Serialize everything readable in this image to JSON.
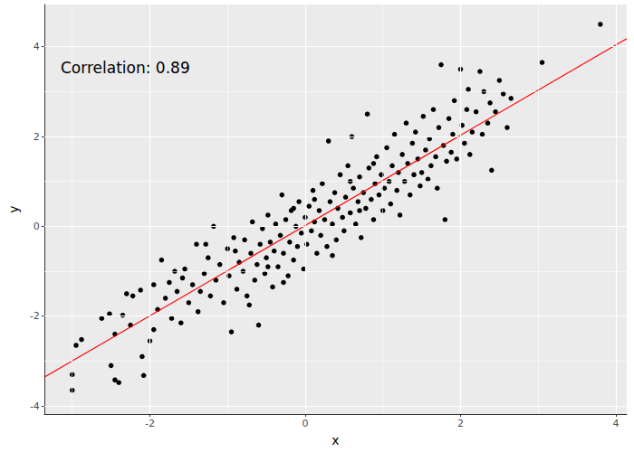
{
  "chart_data": {
    "type": "scatter",
    "x_label": "x",
    "y_label": "y",
    "annotation": "Correlation: 0.89",
    "xlim": [
      -3.36,
      4.14
    ],
    "xticks": [
      -2,
      0,
      2,
      4
    ],
    "ylim": [
      -4.18,
      4.94
    ],
    "yticks": [
      -4,
      -2,
      0,
      2,
      4
    ],
    "grid": true,
    "series": [
      {
        "type": "scatter",
        "color": "#000000",
        "marker": "circle",
        "x": [
          -3.0,
          -3.0,
          -2.95,
          -2.88,
          -2.62,
          -2.52,
          -2.5,
          -2.45,
          -2.4,
          -2.35,
          -2.3,
          -2.22,
          -2.12,
          -2.08,
          -2.1,
          -1.95,
          -1.85,
          -1.72,
          -2.0,
          -1.9,
          -1.8,
          -1.75,
          -1.65,
          -1.6,
          -1.55,
          -1.5,
          -1.45,
          -1.4,
          -1.38,
          -1.3,
          -1.25,
          -1.22,
          -1.18,
          -1.15,
          -1.1,
          -1.05,
          -1.0,
          -0.98,
          -0.95,
          -0.92,
          -0.88,
          -0.85,
          -0.8,
          -0.78,
          -0.75,
          -0.7,
          -0.68,
          -0.65,
          -0.62,
          -0.6,
          -0.58,
          -0.55,
          -0.52,
          -0.5,
          -0.48,
          -0.45,
          -0.42,
          -0.4,
          -0.38,
          -0.35,
          -0.32,
          -0.3,
          -0.28,
          -0.25,
          -0.22,
          -0.2,
          -0.18,
          -0.15,
          -0.12,
          -0.1,
          -0.08,
          -0.05,
          -0.02,
          0.0,
          0.02,
          0.05,
          0.08,
          0.1,
          0.12,
          0.15,
          0.18,
          0.2,
          0.22,
          0.25,
          0.28,
          0.3,
          0.32,
          0.35,
          0.38,
          0.4,
          0.42,
          0.45,
          0.48,
          0.5,
          0.52,
          0.55,
          0.58,
          0.6,
          0.62,
          0.65,
          0.68,
          0.7,
          0.72,
          0.75,
          0.78,
          0.8,
          0.82,
          0.85,
          0.88,
          0.9,
          0.92,
          0.95,
          0.98,
          1.0,
          1.02,
          1.05,
          1.08,
          1.1,
          1.12,
          1.15,
          1.18,
          1.2,
          1.22,
          1.25,
          1.28,
          1.3,
          1.32,
          1.35,
          1.38,
          1.4,
          1.42,
          1.45,
          1.48,
          1.5,
          1.52,
          1.55,
          1.58,
          1.6,
          1.62,
          1.65,
          1.68,
          1.7,
          1.72,
          1.75,
          1.78,
          1.8,
          1.82,
          1.85,
          1.88,
          1.9,
          1.92,
          1.95,
          2.0,
          2.02,
          2.05,
          2.08,
          2.1,
          2.12,
          2.15,
          2.2,
          2.25,
          2.28,
          2.3,
          2.35,
          2.38,
          2.4,
          2.45,
          2.5,
          2.55,
          2.6,
          2.65,
          3.05,
          3.8,
          -1.95,
          -1.68,
          -1.35,
          -1.28,
          -0.9,
          -0.72,
          -0.48,
          -0.15,
          0.12,
          0.35,
          0.58,
          0.88,
          -2.45,
          -2.25,
          -1.58,
          -0.28,
          0.7
        ],
        "values": [
          -3.65,
          -3.3,
          -2.65,
          -2.52,
          -2.05,
          -1.95,
          -3.1,
          -3.42,
          -3.48,
          -1.98,
          -1.5,
          -1.55,
          -1.42,
          -3.32,
          -2.9,
          -2.3,
          -0.75,
          -2.05,
          -2.55,
          -1.85,
          -1.6,
          -1.25,
          -1.45,
          -2.15,
          -0.95,
          -1.7,
          -1.3,
          -0.4,
          -1.9,
          -1.05,
          -0.7,
          -1.55,
          0.0,
          -1.2,
          -0.85,
          -1.7,
          -0.5,
          -1.1,
          -2.35,
          -0.25,
          -1.4,
          -0.8,
          -1.0,
          -0.3,
          -1.55,
          -0.6,
          0.1,
          -1.2,
          -0.85,
          -2.2,
          -0.4,
          -0.05,
          -1.05,
          -0.7,
          0.25,
          -0.35,
          -1.35,
          -0.55,
          0.05,
          -0.9,
          -0.2,
          0.7,
          -0.6,
          0.15,
          -1.1,
          -0.35,
          0.35,
          -0.75,
          0.0,
          -0.45,
          0.55,
          -0.15,
          -0.95,
          0.2,
          -0.4,
          0.45,
          -0.1,
          0.8,
          0.1,
          -0.6,
          0.35,
          -0.2,
          0.95,
          0.15,
          -0.45,
          1.9,
          0.55,
          0.05,
          0.75,
          -0.3,
          0.4,
          1.15,
          0.2,
          -0.1,
          0.65,
          1.35,
          0.3,
          2.0,
          0.85,
          0.05,
          0.55,
          1.1,
          -0.25,
          0.75,
          0.4,
          2.5,
          1.3,
          0.6,
          0.15,
          0.95,
          1.55,
          0.7,
          1.15,
          0.35,
          0.85,
          1.75,
          1.0,
          0.5,
          1.35,
          2.05,
          0.8,
          1.2,
          0.25,
          1.6,
          1.0,
          2.3,
          1.4,
          0.7,
          1.85,
          1.15,
          2.1,
          1.5,
          0.9,
          1.2,
          2.45,
          1.7,
          1.05,
          1.95,
          1.35,
          2.6,
          1.55,
          0.85,
          2.2,
          3.6,
          1.8,
          0.15,
          1.45,
          2.4,
          1.65,
          2.05,
          2.8,
          1.5,
          3.5,
          2.25,
          1.85,
          2.6,
          3.05,
          1.6,
          2.1,
          2.55,
          3.45,
          2.05,
          3.0,
          2.3,
          2.75,
          1.25,
          2.55,
          3.25,
          2.95,
          2.2,
          2.85,
          3.65,
          4.5,
          -1.3,
          -1.0,
          -1.45,
          -0.4,
          -0.55,
          -1.75,
          -0.9,
          0.4,
          0.6,
          -0.65,
          1.0,
          1.4,
          -2.4,
          -2.2,
          -1.15,
          -1.25,
          0.35
        ]
      },
      {
        "type": "line",
        "color": "#ff0000",
        "line_style": "solid",
        "x": [
          -3.36,
          4.14
        ],
        "values": [
          -3.36,
          4.18
        ]
      }
    ]
  }
}
